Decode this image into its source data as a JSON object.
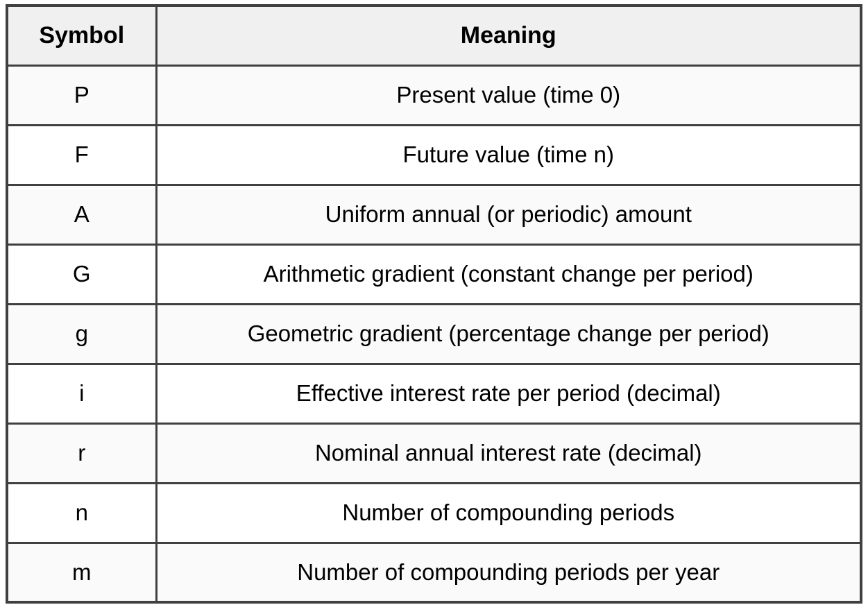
{
  "page": {
    "background": "#ffffff"
  },
  "table": {
    "columns": [
      {
        "label": "Symbol"
      },
      {
        "label": "Meaning"
      }
    ],
    "rows": [
      {
        "symbol": "P",
        "meaning": "Present value (time 0)"
      },
      {
        "symbol": "F",
        "meaning": "Future value (time n)"
      },
      {
        "symbol": "A",
        "meaning": "Uniform annual (or periodic) amount"
      },
      {
        "symbol": "G",
        "meaning": "Arithmetic gradient (constant change per period)"
      },
      {
        "symbol": "g",
        "meaning": "Geometric gradient (percentage change per period)"
      },
      {
        "symbol": "i",
        "meaning": "Effective interest rate per period (decimal)"
      },
      {
        "symbol": "r",
        "meaning": "Nominal annual interest rate (decimal)"
      },
      {
        "symbol": "n",
        "meaning": "Number of compounding periods"
      },
      {
        "symbol": "m",
        "meaning": "Number of compounding periods per year"
      }
    ],
    "colors": {
      "border": "#404040",
      "header_bg": "#f0f0f0",
      "stripe_bg": "#fafafa",
      "row_bg": "#ffffff",
      "text": "#000000"
    }
  }
}
